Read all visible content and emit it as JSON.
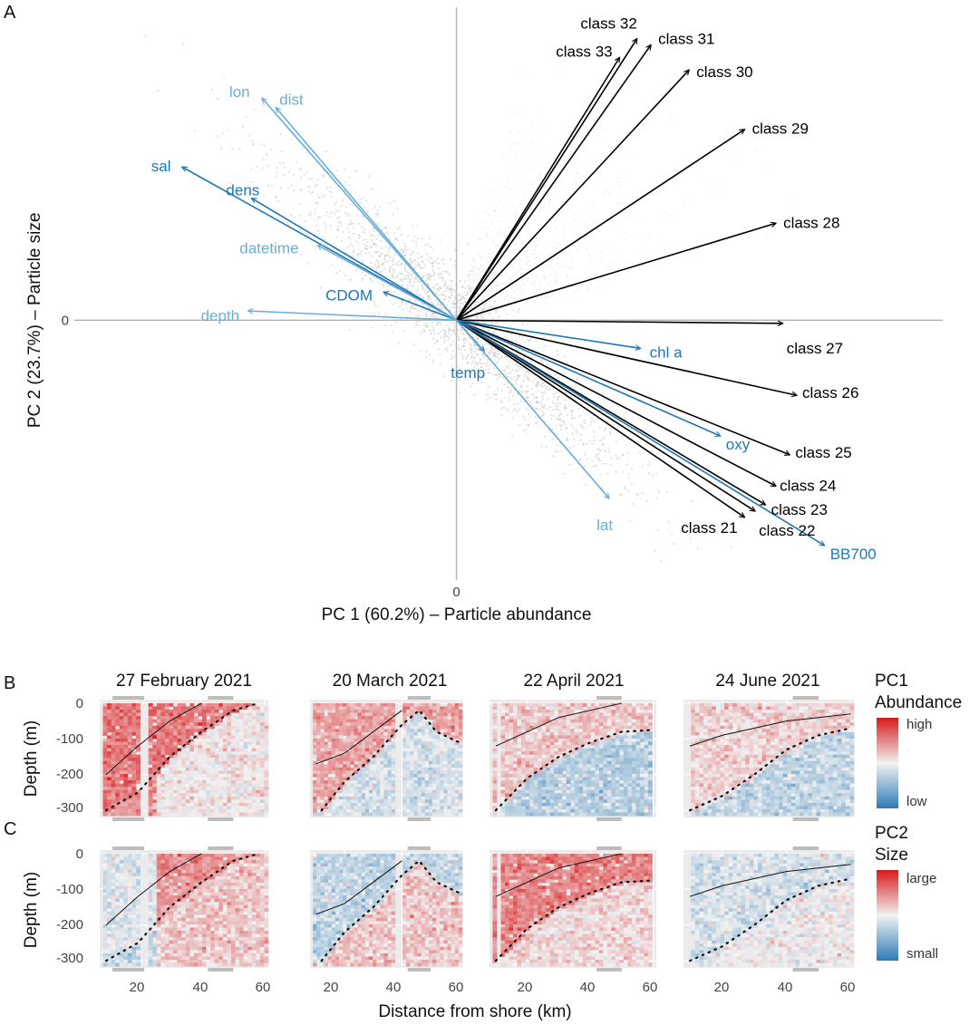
{
  "panels": {
    "a": {
      "letter": "A",
      "chart_data": {
        "type": "scatter",
        "subtype": "pca-biplot",
        "xlabel": "PC 1 (60.2%) – Particle abundance",
        "ylabel": "PC 2 (23.7%) – Particle size",
        "x_ticks": [
          "0"
        ],
        "y_ticks": [
          "0"
        ],
        "xlim": [
          -1.1,
          1.4
        ],
        "ylim": [
          -0.83,
          1.0
        ],
        "colors": {
          "size_class": "#000000",
          "env_dark": "#1f77b4",
          "env_light": "#6baed6",
          "points": "#c8c8c8"
        },
        "loadings": [
          {
            "name": "class 32",
            "x": 0.52,
            "y": 0.9,
            "group": "size_class"
          },
          {
            "name": "class 33",
            "x": 0.47,
            "y": 0.84,
            "group": "size_class"
          },
          {
            "name": "class 31",
            "x": 0.56,
            "y": 0.88,
            "group": "size_class"
          },
          {
            "name": "class 30",
            "x": 0.67,
            "y": 0.8,
            "group": "size_class"
          },
          {
            "name": "class 29",
            "x": 0.83,
            "y": 0.61,
            "group": "size_class"
          },
          {
            "name": "class 28",
            "x": 0.92,
            "y": 0.31,
            "group": "size_class"
          },
          {
            "name": "class 27",
            "x": 0.94,
            "y": -0.01,
            "group": "size_class"
          },
          {
            "name": "class 26",
            "x": 0.98,
            "y": -0.24,
            "group": "size_class"
          },
          {
            "name": "class 25",
            "x": 0.96,
            "y": -0.43,
            "group": "size_class"
          },
          {
            "name": "class 24",
            "x": 0.92,
            "y": -0.53,
            "group": "size_class"
          },
          {
            "name": "class 23",
            "x": 0.89,
            "y": -0.59,
            "group": "size_class"
          },
          {
            "name": "class 22",
            "x": 0.86,
            "y": -0.61,
            "group": "size_class"
          },
          {
            "name": "class 21",
            "x": 0.83,
            "y": -0.63,
            "group": "size_class"
          },
          {
            "name": "BB700",
            "x": 1.06,
            "y": -0.72,
            "group": "env_dark"
          },
          {
            "name": "oxy",
            "x": 0.76,
            "y": -0.37,
            "group": "env_dark"
          },
          {
            "name": "chl a",
            "x": 0.53,
            "y": -0.09,
            "group": "env_dark"
          },
          {
            "name": "temp",
            "x": 0.08,
            "y": -0.1,
            "group": "env_dark"
          },
          {
            "name": "CDOM",
            "x": -0.21,
            "y": 0.09,
            "group": "env_dark"
          },
          {
            "name": "dens",
            "x": -0.59,
            "y": 0.39,
            "group": "env_dark"
          },
          {
            "name": "sal",
            "x": -0.79,
            "y": 0.49,
            "group": "env_dark"
          },
          {
            "name": "lon",
            "x": -0.56,
            "y": 0.71,
            "group": "env_light"
          },
          {
            "name": "dist",
            "x": -0.52,
            "y": 0.68,
            "group": "env_light"
          },
          {
            "name": "datetime",
            "x": -0.4,
            "y": 0.24,
            "group": "env_light"
          },
          {
            "name": "depth",
            "x": -0.6,
            "y": 0.03,
            "group": "env_light"
          },
          {
            "name": "lat",
            "x": 0.44,
            "y": -0.57,
            "group": "env_light"
          }
        ]
      }
    },
    "bc": {
      "chart_data": {
        "type": "heatmap",
        "xlabel": "Distance from shore (km)",
        "ylabel": "Depth (m)",
        "xlim": [
          8,
          61
        ],
        "ylim": [
          -320,
          10
        ],
        "x_ticks": [
          "20",
          "40",
          "60"
        ],
        "y_ticks": [
          "0",
          "-100",
          "-200",
          "-300"
        ],
        "facets": [
          "27 February 2021",
          "20 March 2021",
          "22 April 2021",
          "24 June 2021"
        ],
        "rows": [
          {
            "letter": "B",
            "variable": "PC1",
            "legend_title_1": "PC1",
            "legend_title_2": "Abundance",
            "high_label": "high",
            "low_label": "low"
          },
          {
            "letter": "C",
            "variable": "PC2",
            "legend_title_1": "PC2",
            "legend_title_2": "Size",
            "high_label": "large",
            "low_label": "small"
          }
        ],
        "color_scale": {
          "high": "#d7191c",
          "mid": "#f2f2f2",
          "low": "#2c7bb6"
        }
      }
    }
  }
}
